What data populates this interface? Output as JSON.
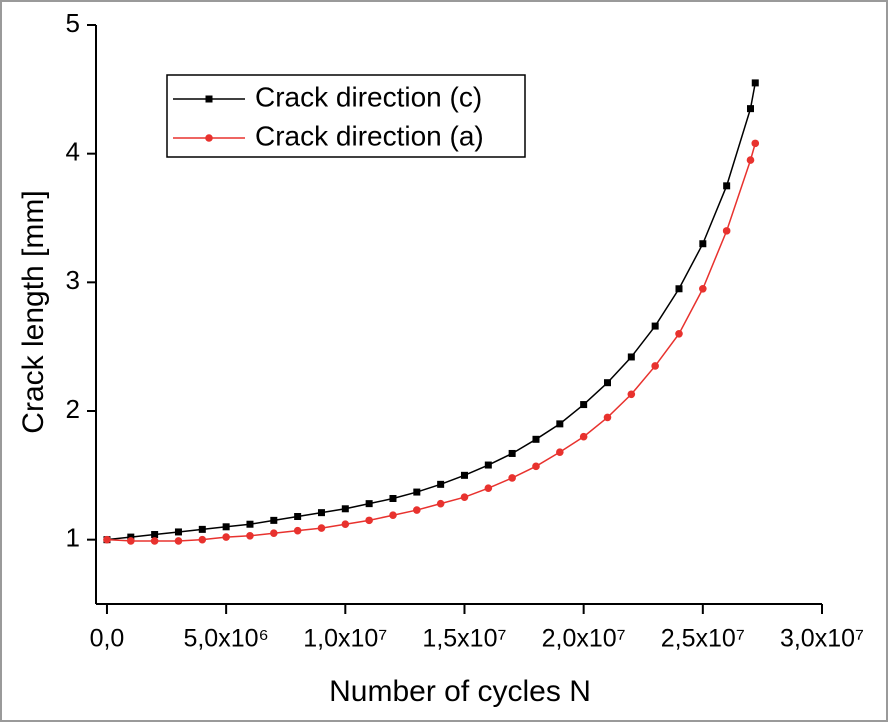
{
  "chart_data": {
    "type": "line",
    "xlabel": "Number of cycles  N",
    "ylabel": "Crack length  [mm]",
    "x": [
      0,
      1000000,
      2000000,
      3000000,
      4000000,
      5000000,
      6000000,
      7000000,
      8000000,
      9000000,
      10000000,
      11000000,
      12000000,
      13000000,
      14000000,
      15000000,
      16000000,
      17000000,
      18000000,
      19000000,
      20000000,
      21000000,
      22000000,
      23000000,
      24000000,
      25000000,
      26000000,
      27000000,
      27200000
    ],
    "series": [
      {
        "name": "Crack direction (c)",
        "color": "#000000",
        "marker": "square",
        "values": [
          1.0,
          1.02,
          1.04,
          1.06,
          1.08,
          1.1,
          1.12,
          1.15,
          1.18,
          1.21,
          1.24,
          1.28,
          1.32,
          1.37,
          1.43,
          1.5,
          1.58,
          1.67,
          1.78,
          1.9,
          2.05,
          2.22,
          2.42,
          2.66,
          2.95,
          3.3,
          3.75,
          4.35,
          4.55
        ]
      },
      {
        "name": "Crack direction (a)",
        "color": "#e8322e",
        "marker": "circle",
        "values": [
          1.0,
          0.99,
          0.99,
          0.99,
          1.0,
          1.02,
          1.03,
          1.05,
          1.07,
          1.09,
          1.12,
          1.15,
          1.19,
          1.23,
          1.28,
          1.33,
          1.4,
          1.48,
          1.57,
          1.68,
          1.8,
          1.95,
          2.13,
          2.35,
          2.6,
          2.95,
          3.4,
          3.95,
          4.08
        ]
      }
    ],
    "xlim": [
      -460000,
      30000000
    ],
    "xticks": [
      {
        "value": 0,
        "label": "0,0"
      },
      {
        "value": 5000000,
        "label": "5,0x10⁶"
      },
      {
        "value": 10000000,
        "label": "1,0x10⁷"
      },
      {
        "value": 15000000,
        "label": "1,5x10⁷"
      },
      {
        "value": 20000000,
        "label": "2,0x10⁷"
      },
      {
        "value": 25000000,
        "label": "2,5x10⁷"
      },
      {
        "value": 30000000,
        "label": "3,0x10⁷"
      }
    ],
    "ylim": [
      0.5,
      5
    ],
    "yticks": [
      1,
      2,
      3,
      4,
      5
    ],
    "grid": false,
    "legend": "upper left"
  }
}
